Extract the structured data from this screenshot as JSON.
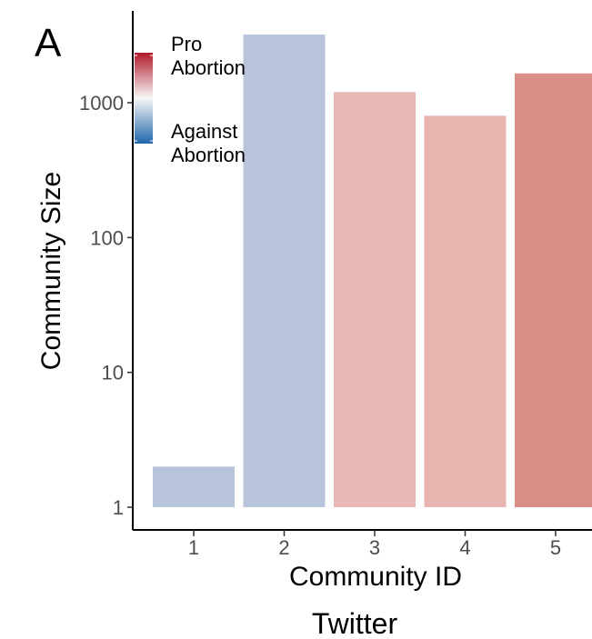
{
  "panel_label": "A",
  "caption": "Twitter",
  "legend": {
    "top_label_line1": "Pro",
    "top_label_line2": "Abortion",
    "bottom_label_line1": "Against",
    "bottom_label_line2": "Abortion",
    "gradient_colors": [
      "#b2182b",
      "#f7f7f7",
      "#2166ac"
    ]
  },
  "chart_data": {
    "type": "bar",
    "title": "",
    "xlabel": "Community ID",
    "ylabel": "Community Size",
    "y_scale": "log10",
    "ylim": [
      1,
      3500
    ],
    "y_ticks": [
      1,
      10,
      100,
      1000
    ],
    "y_tick_labels": [
      "1",
      "10",
      "100",
      "1000"
    ],
    "categories": [
      "1",
      "2",
      "3",
      "4",
      "5"
    ],
    "values": [
      2,
      3200,
      1200,
      800,
      1650
    ],
    "colors": [
      "#b8c4dc",
      "#b8c4dc",
      "#e8b8b4",
      "#e8b4b0",
      "#d98e88"
    ],
    "grid": false,
    "legend_placement": "top-left"
  }
}
